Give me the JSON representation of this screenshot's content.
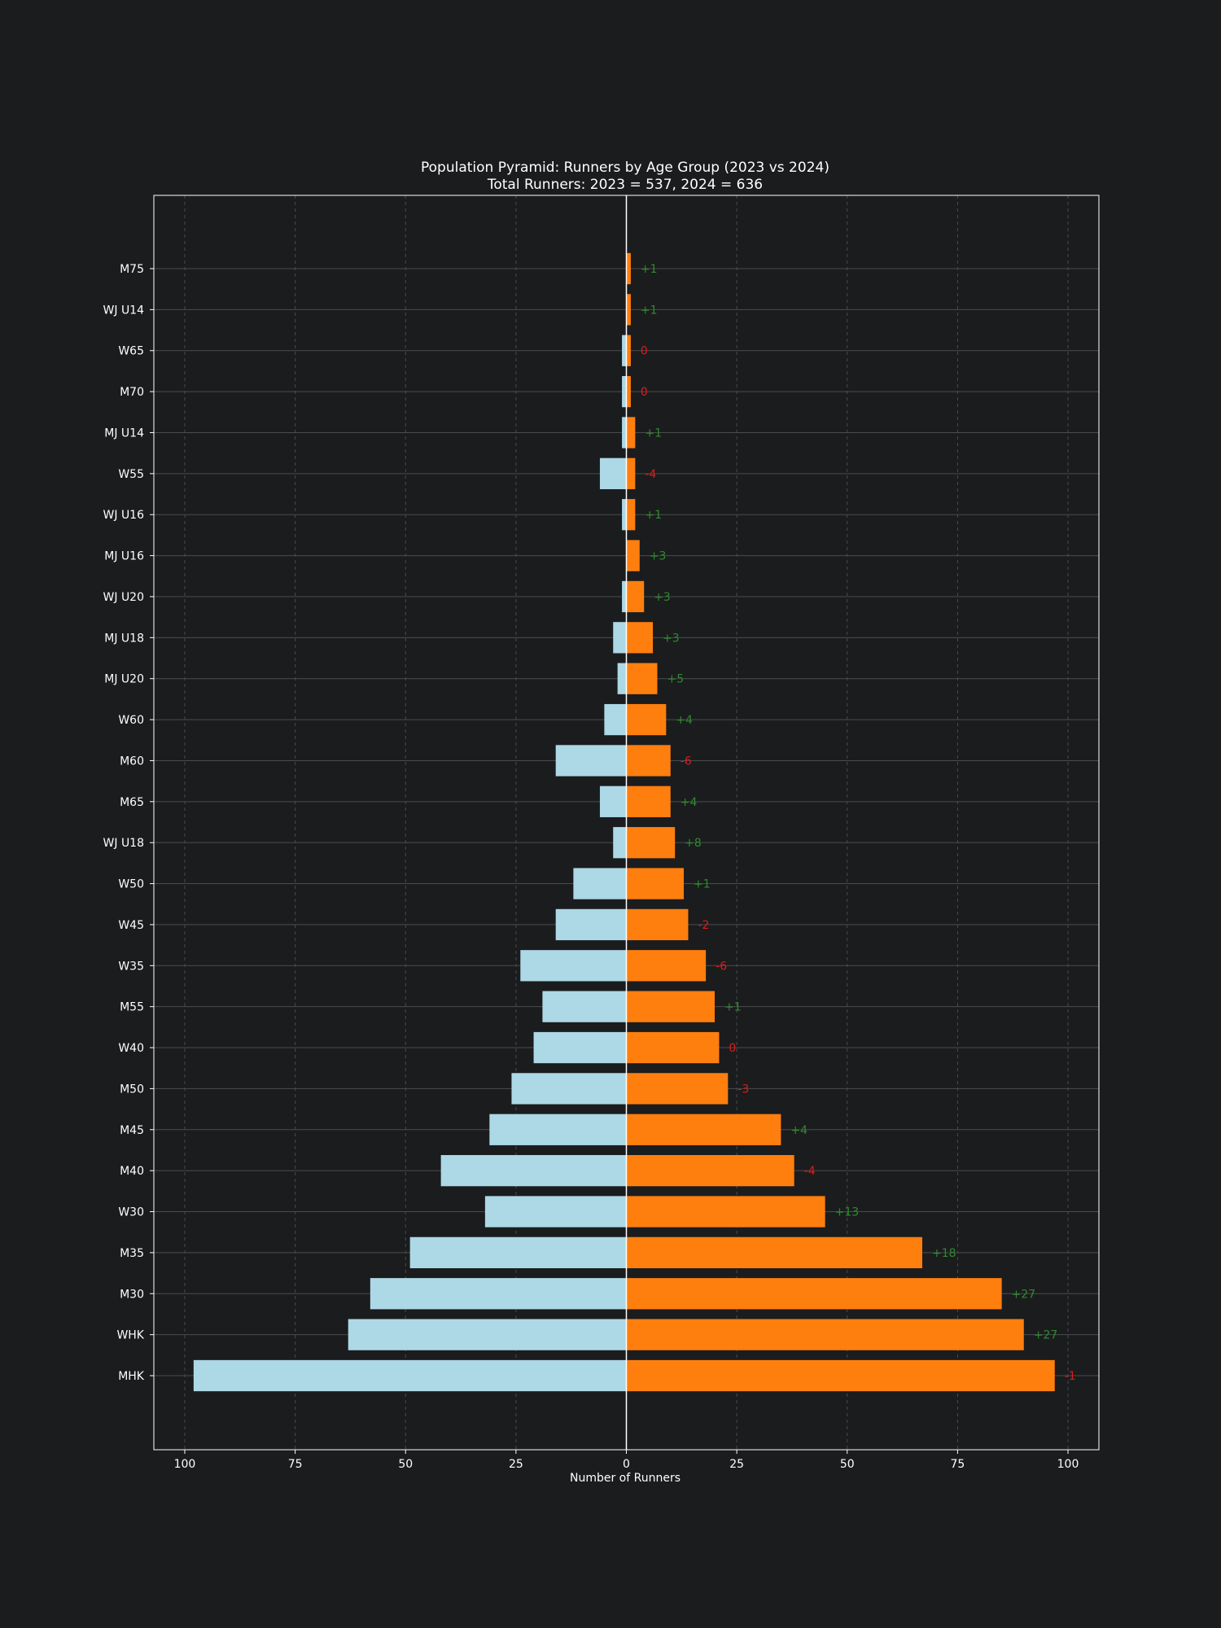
{
  "chart_data": {
    "type": "bar",
    "orientation": "horizontal-pyramid",
    "title": "Population Pyramid: Runners by Age Group (2023 vs 2024)",
    "subtitle": "Total Runners: 2023 = 537, 2024 = 636",
    "xlabel": "Number of Runners",
    "xlim": [
      -107,
      107
    ],
    "xticks": [
      -100,
      -75,
      -50,
      -25,
      0,
      25,
      50,
      75,
      100
    ],
    "xtick_labels": [
      "100",
      "75",
      "50",
      "25",
      "0",
      "25",
      "50",
      "75",
      "100"
    ],
    "grid": true,
    "categories": [
      "MHK",
      "WHK",
      "M30",
      "M35",
      "W30",
      "M40",
      "M45",
      "M50",
      "W40",
      "M55",
      "W35",
      "W45",
      "W50",
      "WJ U18",
      "M65",
      "M60",
      "W60",
      "MJ U20",
      "MJ U18",
      "WJ U20",
      "MJ U16",
      "WJ U16",
      "W55",
      "MJ U14",
      "M70",
      "W65",
      "WJ U14",
      "M75"
    ],
    "series": [
      {
        "values": [
          98,
          63,
          58,
          49,
          32,
          42,
          31,
          26,
          21,
          19,
          24,
          16,
          12,
          3,
          6,
          16,
          5,
          2,
          3,
          1,
          0,
          1,
          6,
          1,
          1,
          1,
          0,
          0
        ],
        "color": "#add8e6",
        "side": "left"
      },
      {
        "values": [
          97,
          90,
          85,
          67,
          45,
          38,
          35,
          23,
          21,
          20,
          18,
          14,
          13,
          11,
          10,
          10,
          9,
          7,
          6,
          4,
          3,
          2,
          2,
          2,
          1,
          1,
          1,
          1
        ],
        "color": "#ff7f0e",
        "side": "right"
      }
    ],
    "difference_labels": [
      "-1",
      "+27",
      "+27",
      "+18",
      "+13",
      "-4",
      "+4",
      "-3",
      "0",
      "+1",
      "-6",
      "-2",
      "+1",
      "+8",
      "+4",
      "-6",
      "+4",
      "+5",
      "+3",
      "+3",
      "+3",
      "+1",
      "-4",
      "+1",
      "0",
      "0",
      "+1",
      "+1"
    ],
    "colors": {
      "positive": "#2e8b2e",
      "non_positive": "#e01b1b",
      "axis_text": "#ffffff",
      "grid": "#4a4b4d",
      "frame": "#ffffff",
      "center_line": "#ffffff"
    }
  }
}
